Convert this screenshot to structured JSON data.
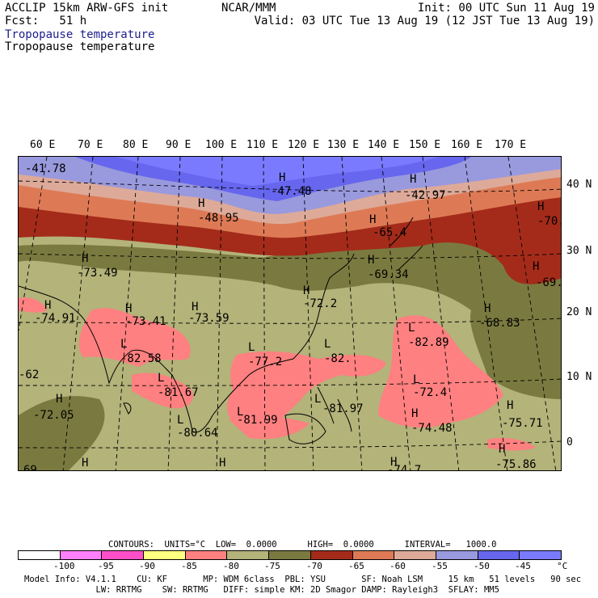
{
  "header": {
    "left_line1": "ACCLIP 15km ARW-GFS init",
    "left_line2": "Fcst:   51 h",
    "center": "NCAR/MMM",
    "right_line1": "Init: 00 UTC Sun 11 Aug 19",
    "right_line2": "Valid: 03 UTC Tue 13 Aug 19 (12 JST Tue 13 Aug 19)",
    "field_title_1": "Tropopause temperature",
    "field_title_2": "Tropopause temperature"
  },
  "axes": {
    "lon_labels": [
      "60 E",
      "70 E",
      "80 E",
      "90 E",
      "100 E",
      "110 E",
      "120 E",
      "130 E",
      "140 E",
      "150 E",
      "160 E",
      "170 E"
    ],
    "lat_labels": [
      "40 N",
      "30 N",
      "20 N",
      "10 N",
      "0"
    ]
  },
  "map": {
    "colors": {
      "v_le_minus95": "#ff80ff",
      "v_minus90": "#ff4fc8",
      "v_minus85": "#ffff80",
      "v_minus80": "#ff8080",
      "v_minus75": "#b3b37a",
      "v_minus70": "#7a7a40",
      "v_minus65": "#a42b1a",
      "v_minus60": "#dd7a55",
      "v_minus55": "#ddaa99",
      "v_minus50": "#9999dd",
      "v_minus45": "#6666ee",
      "v_minus40": "#7a7aff"
    },
    "extrema": [
      {
        "mark": "",
        "value": "-41.78"
      },
      {
        "mark": "H",
        "value": "-47.48"
      },
      {
        "mark": "H",
        "value": "-42.97"
      },
      {
        "mark": "H",
        "value": "-48.95"
      },
      {
        "mark": "H",
        "value": "-65.4"
      },
      {
        "mark": "H",
        "value": "-70."
      },
      {
        "mark": "H",
        "value": "-73.49"
      },
      {
        "mark": "H",
        "value": "-69.34"
      },
      {
        "mark": "H",
        "value": "-69."
      },
      {
        "mark": "H",
        "value": "-74.91"
      },
      {
        "mark": "H",
        "value": "-73.41"
      },
      {
        "mark": "H",
        "value": "-73.59"
      },
      {
        "mark": "H",
        "value": "-72.2"
      },
      {
        "mark": "H",
        "value": "-68.83"
      },
      {
        "mark": "L",
        "value": "-82.58"
      },
      {
        "mark": "L",
        "value": "-77.2"
      },
      {
        "mark": "L",
        "value": "-82."
      },
      {
        "mark": "L",
        "value": "-82.89"
      },
      {
        "mark": "",
        "value": "-62"
      },
      {
        "mark": "L",
        "value": "-81.67"
      },
      {
        "mark": "L",
        "value": "-72.4"
      },
      {
        "mark": "H",
        "value": "-72.05"
      },
      {
        "mark": "L",
        "value": "-81.99"
      },
      {
        "mark": "L",
        "value": "-81.97"
      },
      {
        "mark": "H",
        "value": "-74.48"
      },
      {
        "mark": "H",
        "value": "-75.71"
      },
      {
        "mark": "L",
        "value": "-80.64"
      },
      {
        "mark": "H",
        "value": "-75.86"
      },
      {
        "mark": "H",
        "value": "-74.7"
      },
      {
        "mark": "H",
        "value": ""
      },
      {
        "mark": "",
        "value": "69"
      }
    ]
  },
  "footer": {
    "contours_label": "CONTOURS:  UNITS=°C  LOW=  0.0000      HIGH=  0.0000      INTERVAL=   1000.0",
    "model_line1": "Model Info: V4.1.1    CU: KF       MP: WDM 6class  PBL: YSU       SF: Noah LSM     15 km   51 levels   90 sec",
    "model_line2": "              LW: RRTMG    SW: RRTMG   DIFF: simple KM: 2D Smagor DAMP: Rayleigh3  SFLAY: MM5"
  },
  "colorbar": {
    "unit": "°C",
    "ticks": [
      "-100",
      "-95",
      "-90",
      "-85",
      "-80",
      "-75",
      "-70",
      "-65",
      "-60",
      "-55",
      "-50",
      "-45",
      "-40"
    ],
    "box_colors": [
      "#ffffff",
      "#ff80ff",
      "#ff4fc8",
      "#ffff80",
      "#ff8080",
      "#b3b37a",
      "#7a7a40",
      "#a42b1a",
      "#dd7a55",
      "#ddaa99",
      "#9999dd",
      "#6666ee",
      "#7a7aff"
    ]
  }
}
